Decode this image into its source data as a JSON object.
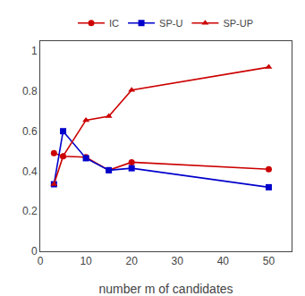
{
  "chart_data": {
    "type": "line",
    "x_label": "number m of candidates",
    "x": [
      3,
      5,
      10,
      15,
      20,
      50
    ],
    "series": [
      {
        "name": "IC",
        "color": "#cc0000",
        "marker": "circle",
        "line_style": "solid",
        "values": [
          0.49,
          0.475,
          0.47,
          0.405,
          0.445,
          0.41
        ]
      },
      {
        "name": "SP-U",
        "color": "#0000cc",
        "marker": "square",
        "line_style": "solid",
        "values": [
          0.335,
          0.6,
          0.465,
          0.405,
          0.415,
          0.32
        ]
      },
      {
        "name": "SP-UP",
        "color": "#cc0000",
        "marker": "triangle-up",
        "line_style": "solid",
        "values": [
          0.335,
          0.475,
          0.655,
          0.675,
          0.805,
          0.92
        ]
      }
    ],
    "xlim": [
      0,
      55
    ],
    "ylim": [
      0,
      1.05
    ],
    "xticks": [
      0,
      10,
      20,
      30,
      40,
      50
    ],
    "yticks": [
      0,
      0.2,
      0.4,
      0.6,
      0.8,
      1
    ],
    "grid": false,
    "legend": "top"
  }
}
